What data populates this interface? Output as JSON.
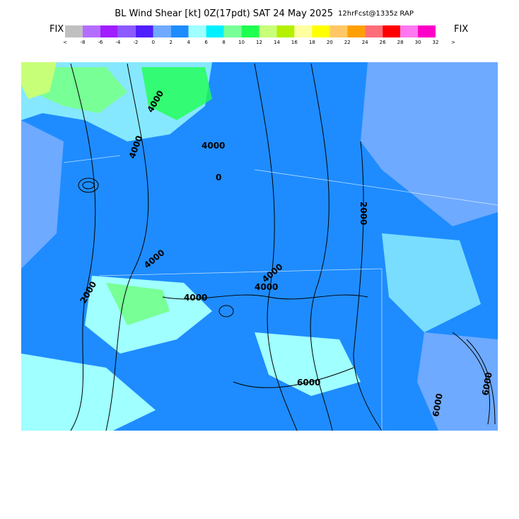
{
  "header": {
    "title": "BL Wind Shear [kt] 0Z(17pdt) SAT 24 May 2025",
    "subtitle": "12hrFcst@1335z RAP",
    "left_label": "FIX",
    "right_label": "FIX"
  },
  "colorbar": {
    "labels": [
      "<",
      "-8",
      "-6",
      "-4",
      "-2",
      "0",
      "2",
      "4",
      "6",
      "8",
      "10",
      "12",
      "14",
      "16",
      "18",
      "20",
      "22",
      "24",
      "26",
      "28",
      "30",
      "32",
      ">"
    ],
    "colors": [
      "#c0c0c0",
      "#b46eff",
      "#a01eff",
      "#8c5aff",
      "#501eff",
      "#6eaaff",
      "#1e8cff",
      "#a0ffff",
      "#00f0ff",
      "#78ff96",
      "#1eff50",
      "#c8ff78",
      "#b4f000",
      "#ffffa0",
      "#ffff00",
      "#ffc864",
      "#ffa000",
      "#ff6e78",
      "#ff0000",
      "#ff78f0",
      "#ff00c8"
    ]
  },
  "map": {
    "contour_labels": [
      "4000",
      "4000",
      "4000",
      "2000",
      "4000",
      "4000",
      "4000",
      "6000",
      "4000",
      "0",
      "2000",
      "6000",
      "6000"
    ]
  }
}
